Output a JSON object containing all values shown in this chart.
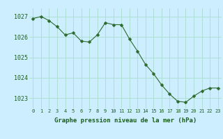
{
  "x": [
    0,
    1,
    2,
    3,
    4,
    5,
    6,
    7,
    8,
    9,
    10,
    11,
    12,
    13,
    14,
    15,
    16,
    17,
    18,
    19,
    20,
    21,
    22,
    23
  ],
  "y": [
    1026.9,
    1027.0,
    1026.8,
    1026.5,
    1026.1,
    1026.2,
    1025.8,
    1025.75,
    1026.1,
    1026.7,
    1026.6,
    1026.6,
    1025.9,
    1025.3,
    1024.65,
    1024.2,
    1023.65,
    1023.2,
    1022.85,
    1022.8,
    1023.1,
    1023.35,
    1023.5,
    1023.5
  ],
  "line_color": "#2d6a2d",
  "marker": "D",
  "marker_size": 2.5,
  "bg_color": "#cceeff",
  "grid_color": "#aaddcc",
  "xlabel": "Graphe pression niveau de la mer (hPa)",
  "xlabel_color": "#1a5c1a",
  "tick_color": "#1a5c1a",
  "ylim": [
    1022.5,
    1027.4
  ],
  "yticks": [
    1023,
    1024,
    1025,
    1026,
    1027
  ],
  "xticks": [
    0,
    1,
    2,
    3,
    4,
    5,
    6,
    7,
    8,
    9,
    10,
    11,
    12,
    13,
    14,
    15,
    16,
    17,
    18,
    19,
    20,
    21,
    22,
    23
  ],
  "figsize": [
    3.2,
    2.0
  ],
  "dpi": 100
}
